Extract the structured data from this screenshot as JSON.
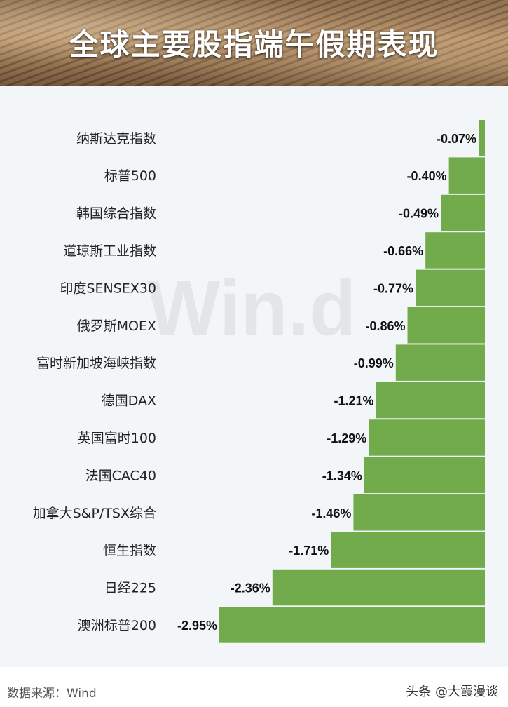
{
  "title": "全球主要股指端午假期表现",
  "source": "数据来源：Wind",
  "watermark": "Win.d",
  "credit": "头条 @大霞漫谈",
  "colors": {
    "bar": "#72ab4c",
    "background": "#f2f6f8",
    "label": "#222222",
    "value": "#111111"
  },
  "chart_data": {
    "type": "bar",
    "orientation": "horizontal",
    "categories": [
      "纳斯达克指数",
      "标普500",
      "韩国综合指数",
      "道琼斯工业指数",
      "印度SENSEX30",
      "俄罗斯MOEX",
      "富时新加坡海峡指数",
      "德国DAX",
      "英国富时100",
      "法国CAC40",
      "加拿大S&P/TSX综合",
      "恒生指数",
      "日经225",
      "澳洲标普200"
    ],
    "values": [
      -0.07,
      -0.4,
      -0.49,
      -0.66,
      -0.77,
      -0.86,
      -0.99,
      -1.21,
      -1.29,
      -1.34,
      -1.46,
      -1.71,
      -2.36,
      -2.95
    ],
    "value_labels": [
      "-0.07%",
      "-0.40%",
      "-0.49%",
      "-0.66%",
      "-0.77%",
      "-0.86%",
      "-0.99%",
      "-1.21%",
      "-1.29%",
      "-1.34%",
      "-1.46%",
      "-1.71%",
      "-2.36%",
      "-2.95%"
    ],
    "unit": "%",
    "xlim": [
      -2.95,
      0
    ],
    "grid": false,
    "legend": "none"
  }
}
